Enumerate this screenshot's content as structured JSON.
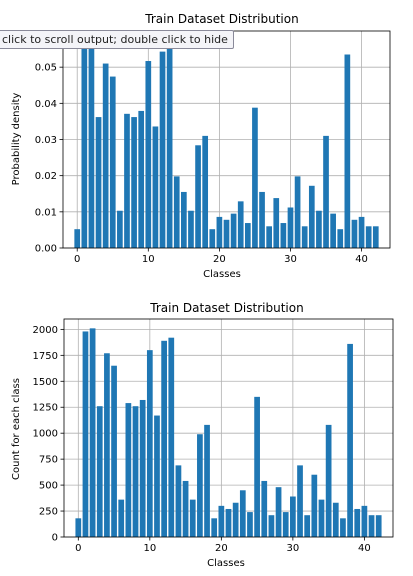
{
  "chart_data": [
    {
      "type": "bar",
      "title": "Train Dataset Distribution",
      "xlabel": "Classes",
      "ylabel": "Probability density",
      "xlim": [
        -2,
        44
      ],
      "ylim": [
        0,
        0.06
      ],
      "xticks": [
        0,
        10,
        20,
        30,
        40
      ],
      "xtick_labels": [
        "0",
        "10",
        "20",
        "30",
        "40"
      ],
      "yticks": [
        0,
        0.01,
        0.02,
        0.03,
        0.04,
        0.05
      ],
      "ytick_labels": [
        "0.00",
        "0.01",
        "0.02",
        "0.03",
        "0.04",
        "0.05"
      ],
      "grid": true,
      "bar_color": "#1f77b4",
      "x": [
        0,
        1,
        2,
        3,
        4,
        5,
        6,
        7,
        8,
        9,
        10,
        11,
        12,
        13,
        14,
        15,
        16,
        17,
        18,
        19,
        20,
        21,
        22,
        23,
        24,
        25,
        26,
        27,
        28,
        29,
        30,
        31,
        32,
        33,
        34,
        35,
        36,
        37,
        38,
        39,
        40,
        41,
        42
      ],
      "values": [
        0.0052,
        0.0569,
        0.0578,
        0.0362,
        0.051,
        0.0474,
        0.0103,
        0.0371,
        0.0362,
        0.0379,
        0.0517,
        0.0336,
        0.0543,
        0.0552,
        0.0198,
        0.0155,
        0.0103,
        0.0284,
        0.031,
        0.0052,
        0.0086,
        0.0078,
        0.0095,
        0.0129,
        0.0069,
        0.0388,
        0.0155,
        0.006,
        0.0138,
        0.0069,
        0.0112,
        0.0198,
        0.006,
        0.0172,
        0.0103,
        0.031,
        0.0095,
        0.0052,
        0.0535,
        0.0078,
        0.0086,
        0.006,
        0.006
      ]
    },
    {
      "type": "bar",
      "title": "Train Dataset Distribution",
      "xlabel": "Classes",
      "ylabel": "Count for each class",
      "xlim": [
        -2,
        44
      ],
      "ylim": [
        0,
        2100
      ],
      "xticks": [
        0,
        10,
        20,
        30,
        40
      ],
      "xtick_labels": [
        "0",
        "10",
        "20",
        "30",
        "40"
      ],
      "yticks": [
        0,
        250,
        500,
        750,
        1000,
        1250,
        1500,
        1750,
        2000
      ],
      "ytick_labels": [
        "0",
        "250",
        "500",
        "750",
        "1000",
        "1250",
        "1500",
        "1750",
        "2000"
      ],
      "grid": true,
      "bar_color": "#1f77b4",
      "x": [
        0,
        1,
        2,
        3,
        4,
        5,
        6,
        7,
        8,
        9,
        10,
        11,
        12,
        13,
        14,
        15,
        16,
        17,
        18,
        19,
        20,
        21,
        22,
        23,
        24,
        25,
        26,
        27,
        28,
        29,
        30,
        31,
        32,
        33,
        34,
        35,
        36,
        37,
        38,
        39,
        40,
        41,
        42
      ],
      "values": [
        180,
        1980,
        2010,
        1260,
        1770,
        1650,
        360,
        1290,
        1260,
        1320,
        1800,
        1170,
        1890,
        1920,
        690,
        540,
        360,
        990,
        1080,
        180,
        300,
        270,
        330,
        450,
        240,
        1350,
        540,
        210,
        480,
        240,
        390,
        690,
        210,
        600,
        360,
        1080,
        330,
        180,
        1860,
        270,
        300,
        210,
        210
      ]
    }
  ],
  "tooltip": {
    "text": "click to scroll output; double click to hide"
  }
}
